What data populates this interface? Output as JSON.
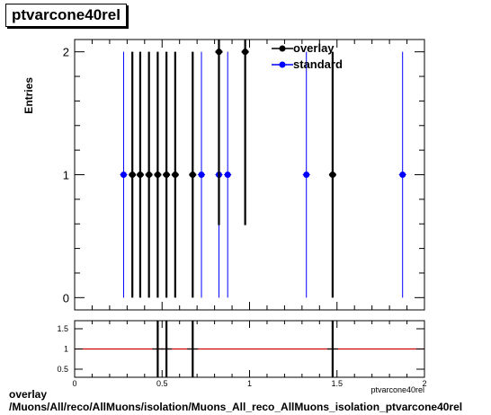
{
  "title": "ptvarcone40rel",
  "footer": {
    "line1": "overlay",
    "line2": "/Muons/All/reco/AllMuons/isolation/Muons_All_reco_AllMuons_isolation_ptvarcone40rel"
  },
  "colors": {
    "overlay": "#000000",
    "standard": "#0000ff",
    "ratio_line": "#cc0000"
  },
  "chart_data": [
    {
      "type": "scatter",
      "ylabel": "Entries",
      "xlim": [
        0,
        2
      ],
      "ylim": [
        -0.1,
        2.1
      ],
      "yticks": [
        0,
        1,
        2
      ],
      "legend_position": "top-right",
      "series": [
        {
          "name": "overlay",
          "x": [
            0.33,
            0.375,
            0.425,
            0.475,
            0.525,
            0.575,
            0.675,
            0.825,
            0.975,
            1.475
          ],
          "y": [
            1,
            1,
            1,
            1,
            1,
            1,
            1,
            2,
            2,
            1
          ],
          "yerr": [
            1,
            1,
            1,
            1,
            1,
            1,
            1,
            1.41,
            1.41,
            1
          ]
        },
        {
          "name": "standard",
          "x": [
            0.28,
            0.725,
            0.825,
            0.875,
            1.325,
            1.875
          ],
          "y": [
            1,
            1,
            1,
            1,
            1,
            1
          ],
          "yerr": [
            1,
            1,
            1,
            1,
            1,
            1
          ]
        }
      ]
    },
    {
      "type": "scatter",
      "xlabel": "ptvarcone40rel",
      "xlim": [
        0,
        2
      ],
      "ylim": [
        0.3,
        1.7
      ],
      "yticks": [
        0.5,
        1,
        1.5
      ],
      "xticks": [
        0,
        0.5,
        1,
        1.5,
        2
      ],
      "reference_line": 1,
      "ratio_points": {
        "x": [
          0.475,
          0.525,
          0.675,
          1.475
        ],
        "y": [
          1,
          1,
          1,
          1
        ]
      }
    }
  ]
}
